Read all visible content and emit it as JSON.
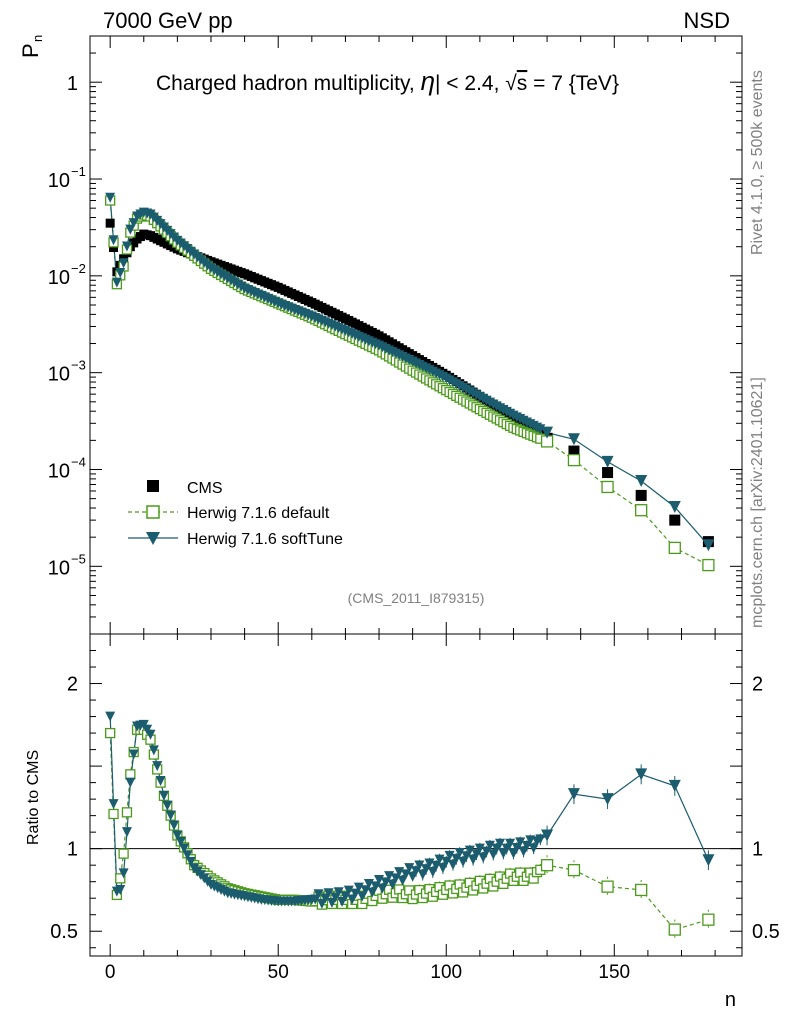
{
  "header": {
    "left": "7000 GeV pp",
    "right": "NSD"
  },
  "side": {
    "rivet": "Rivet 4.1.0, ≥ 500k events",
    "mcplots": "mcplots.cern.ch [arXiv:2401.10621]"
  },
  "chart_data": {
    "type": "scatter",
    "title": "Charged hadron multiplicity, |η| < 2.4, √s = 7 {TeV}",
    "title_parts": {
      "pre": "Charged hadron multiplicity, ",
      "eta": "η",
      "mid": "| < 2.4, ",
      "sqrt": "√",
      "s": "s",
      "post": " = 7 {TeV}"
    },
    "ylabel": {
      "main": "P",
      "sub": "n"
    },
    "xlabel": "n",
    "ratio_ylabel": "Ratio to CMS",
    "analysis": "(CMS_2011_I879315)",
    "xlim": [
      -6,
      188
    ],
    "ylim": [
      2e-06,
      3
    ],
    "ratio_ylim": [
      0.35,
      2.3
    ],
    "x_ticks": [
      "0",
      "50",
      "100",
      "150"
    ],
    "y_tick_labels": [
      {
        "base": "10",
        "exp": "−5",
        "v": 1e-05
      },
      {
        "base": "10",
        "exp": "−4",
        "v": 0.0001
      },
      {
        "base": "10",
        "exp": "−3",
        "v": 0.001
      },
      {
        "base": "10",
        "exp": "−2",
        "v": 0.01
      },
      {
        "base": "10",
        "exp": "−1",
        "v": 0.1
      },
      {
        "base": "",
        "exp": "1",
        "v": 1
      }
    ],
    "ratio_ticks": [
      "0.5",
      "1",
      "2"
    ],
    "ratio_tick_values": [
      0.5,
      1,
      2
    ],
    "legend": [
      "CMS",
      "Herwig 7.1.6 default",
      "Herwig 7.1.6 softTune"
    ],
    "colors": {
      "cms": "#000000",
      "default": "#4c9a1c",
      "softtune": "#1b5c6e"
    },
    "series": [
      {
        "name": "CMS",
        "x": [
          0,
          2,
          4,
          6,
          8,
          10,
          12,
          14,
          20,
          30,
          40,
          50,
          60,
          70,
          80,
          90,
          100,
          110,
          120,
          130,
          138,
          148,
          158,
          168,
          178
        ],
        "y": [
          0.035,
          0.011,
          0.015,
          0.02,
          0.024,
          0.027,
          0.026,
          0.024,
          0.019,
          0.014,
          0.0105,
          0.0076,
          0.0053,
          0.0036,
          0.0024,
          0.0015,
          0.00094,
          0.00057,
          0.00035,
          0.00021,
          0.000155,
          9.3e-05,
          5.4e-05,
          3e-05,
          1.8e-05
        ]
      },
      {
        "name": "Herwig 7.1.6 default",
        "x": [
          0,
          2,
          4,
          6,
          8,
          10,
          12,
          14,
          20,
          30,
          40,
          50,
          60,
          70,
          80,
          90,
          100,
          110,
          120,
          130,
          138,
          148,
          158,
          168,
          178
        ],
        "y": [
          0.06,
          0.0082,
          0.0125,
          0.028,
          0.039,
          0.043,
          0.041,
          0.035,
          0.022,
          0.0118,
          0.0073,
          0.0052,
          0.0037,
          0.0025,
          0.0017,
          0.00105,
          0.00066,
          0.00042,
          0.00027,
          0.000195,
          0.000125,
          6.6e-05,
          3.8e-05,
          1.55e-05,
          1.03e-05
        ]
      },
      {
        "name": "Herwig 7.1.6 softTune",
        "x": [
          0,
          2,
          4,
          6,
          8,
          10,
          12,
          14,
          20,
          30,
          40,
          50,
          60,
          70,
          80,
          90,
          100,
          110,
          120,
          130,
          138,
          148,
          158,
          168,
          178
        ],
        "y": [
          0.064,
          0.0085,
          0.0135,
          0.03,
          0.041,
          0.045,
          0.043,
          0.037,
          0.023,
          0.012,
          0.0074,
          0.0052,
          0.0038,
          0.0027,
          0.0019,
          0.0013,
          0.00087,
          0.00056,
          0.00036,
          0.00024,
          0.000205,
          0.00012,
          7.6e-05,
          4.1e-05,
          1.65e-05
        ]
      }
    ],
    "ratio_series": [
      {
        "name": "Herwig 7.1.6 default",
        "x": [
          0,
          2,
          3,
          4,
          5,
          6,
          8,
          10,
          12,
          14,
          16,
          20,
          25,
          30,
          35,
          40,
          45,
          50,
          55,
          60,
          65,
          70,
          75,
          80,
          85,
          90,
          95,
          100,
          105,
          110,
          115,
          120,
          125,
          130,
          138,
          148,
          158,
          168,
          178
        ],
        "y": [
          1.7,
          0.72,
          0.82,
          0.97,
          1.22,
          1.45,
          1.72,
          1.72,
          1.66,
          1.48,
          1.32,
          1.08,
          0.9,
          0.82,
          0.76,
          0.73,
          0.71,
          0.69,
          0.69,
          0.68,
          0.69,
          0.69,
          0.69,
          0.72,
          0.73,
          0.72,
          0.73,
          0.75,
          0.76,
          0.78,
          0.8,
          0.83,
          0.83,
          0.9,
          0.87,
          0.77,
          0.75,
          0.51,
          0.57
        ]
      },
      {
        "name": "Herwig 7.1.6 softTune",
        "x": [
          0,
          2,
          3,
          4,
          5,
          6,
          8,
          10,
          12,
          14,
          16,
          20,
          25,
          30,
          35,
          40,
          45,
          50,
          55,
          60,
          65,
          70,
          75,
          80,
          85,
          90,
          95,
          100,
          105,
          110,
          115,
          120,
          125,
          130,
          138,
          148,
          158,
          168,
          178
        ],
        "y": [
          1.8,
          0.74,
          0.75,
          0.85,
          1.1,
          1.4,
          1.74,
          1.75,
          1.69,
          1.5,
          1.32,
          1.08,
          0.88,
          0.78,
          0.73,
          0.71,
          0.69,
          0.68,
          0.68,
          0.69,
          0.7,
          0.71,
          0.74,
          0.78,
          0.82,
          0.86,
          0.88,
          0.92,
          0.95,
          0.97,
          1.0,
          1.0,
          1.02,
          1.08,
          1.33,
          1.3,
          1.45,
          1.38,
          0.93
        ]
      }
    ]
  }
}
